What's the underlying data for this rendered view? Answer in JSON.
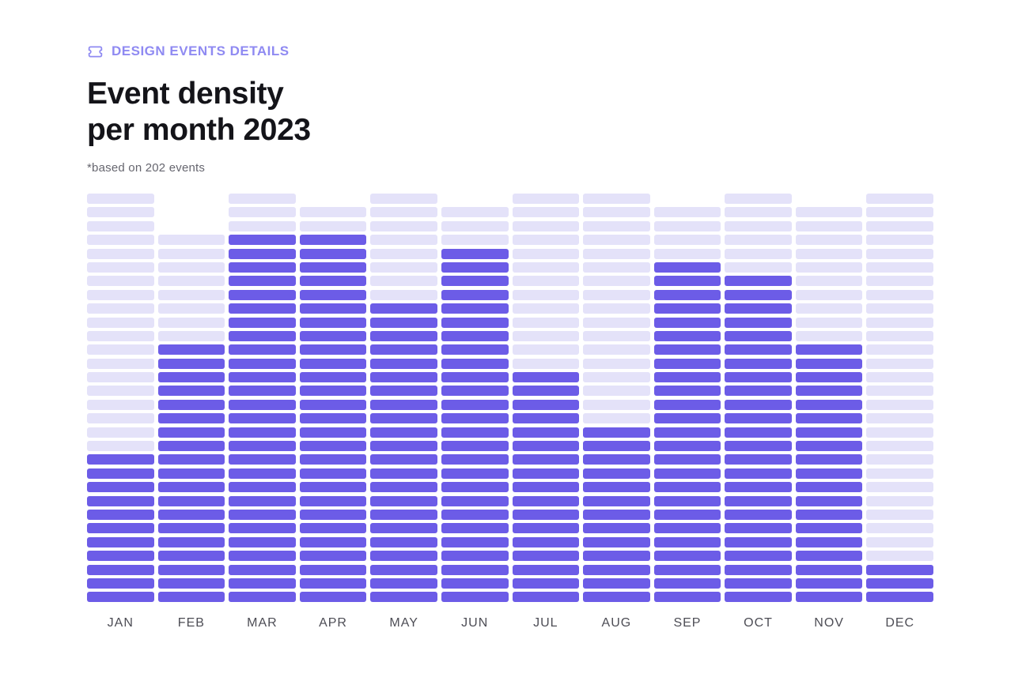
{
  "header": {
    "eyebrow": "DESIGN EVENTS DETAILS",
    "title_line1": "Event density",
    "title_line2": "per month 2023",
    "note": "*based on 202 events"
  },
  "colors": {
    "accent": "#6c5ce7",
    "accent_light": "#e4e2f9",
    "eyebrow_text": "#8f8af2",
    "title_text": "#141419",
    "note_text": "#66666f",
    "month_label_text": "#4d4d55",
    "background": "#ffffff"
  },
  "icons": {
    "eyebrow_icon": "ticket-icon"
  },
  "chart_data": {
    "type": "bar",
    "variant": "segmented-stacked-columns",
    "title": "Event density per month 2023",
    "subtitle": "*based on 202 events",
    "categories": [
      "JAN",
      "FEB",
      "MAR",
      "APR",
      "MAY",
      "JUN",
      "JUL",
      "AUG",
      "SEP",
      "OCT",
      "NOV",
      "DEC"
    ],
    "series": [
      {
        "name": "filled-event-segments",
        "color": "#6c5ce7",
        "values": [
          11,
          19,
          27,
          27,
          22,
          26,
          17,
          13,
          25,
          24,
          19,
          3
        ]
      },
      {
        "name": "empty-segments",
        "color": "#e4e2f9",
        "values": [
          19,
          8,
          3,
          2,
          8,
          3,
          13,
          17,
          4,
          6,
          10,
          27
        ]
      }
    ],
    "total_segments_per_month": [
      30,
      27,
      30,
      29,
      30,
      29,
      30,
      30,
      29,
      30,
      29,
      30
    ],
    "segment_order": "empty segments on top, filled segments at bottom",
    "orientation": "vertical",
    "legend": "none",
    "grid": false,
    "xlabel": "",
    "ylabel": ""
  }
}
